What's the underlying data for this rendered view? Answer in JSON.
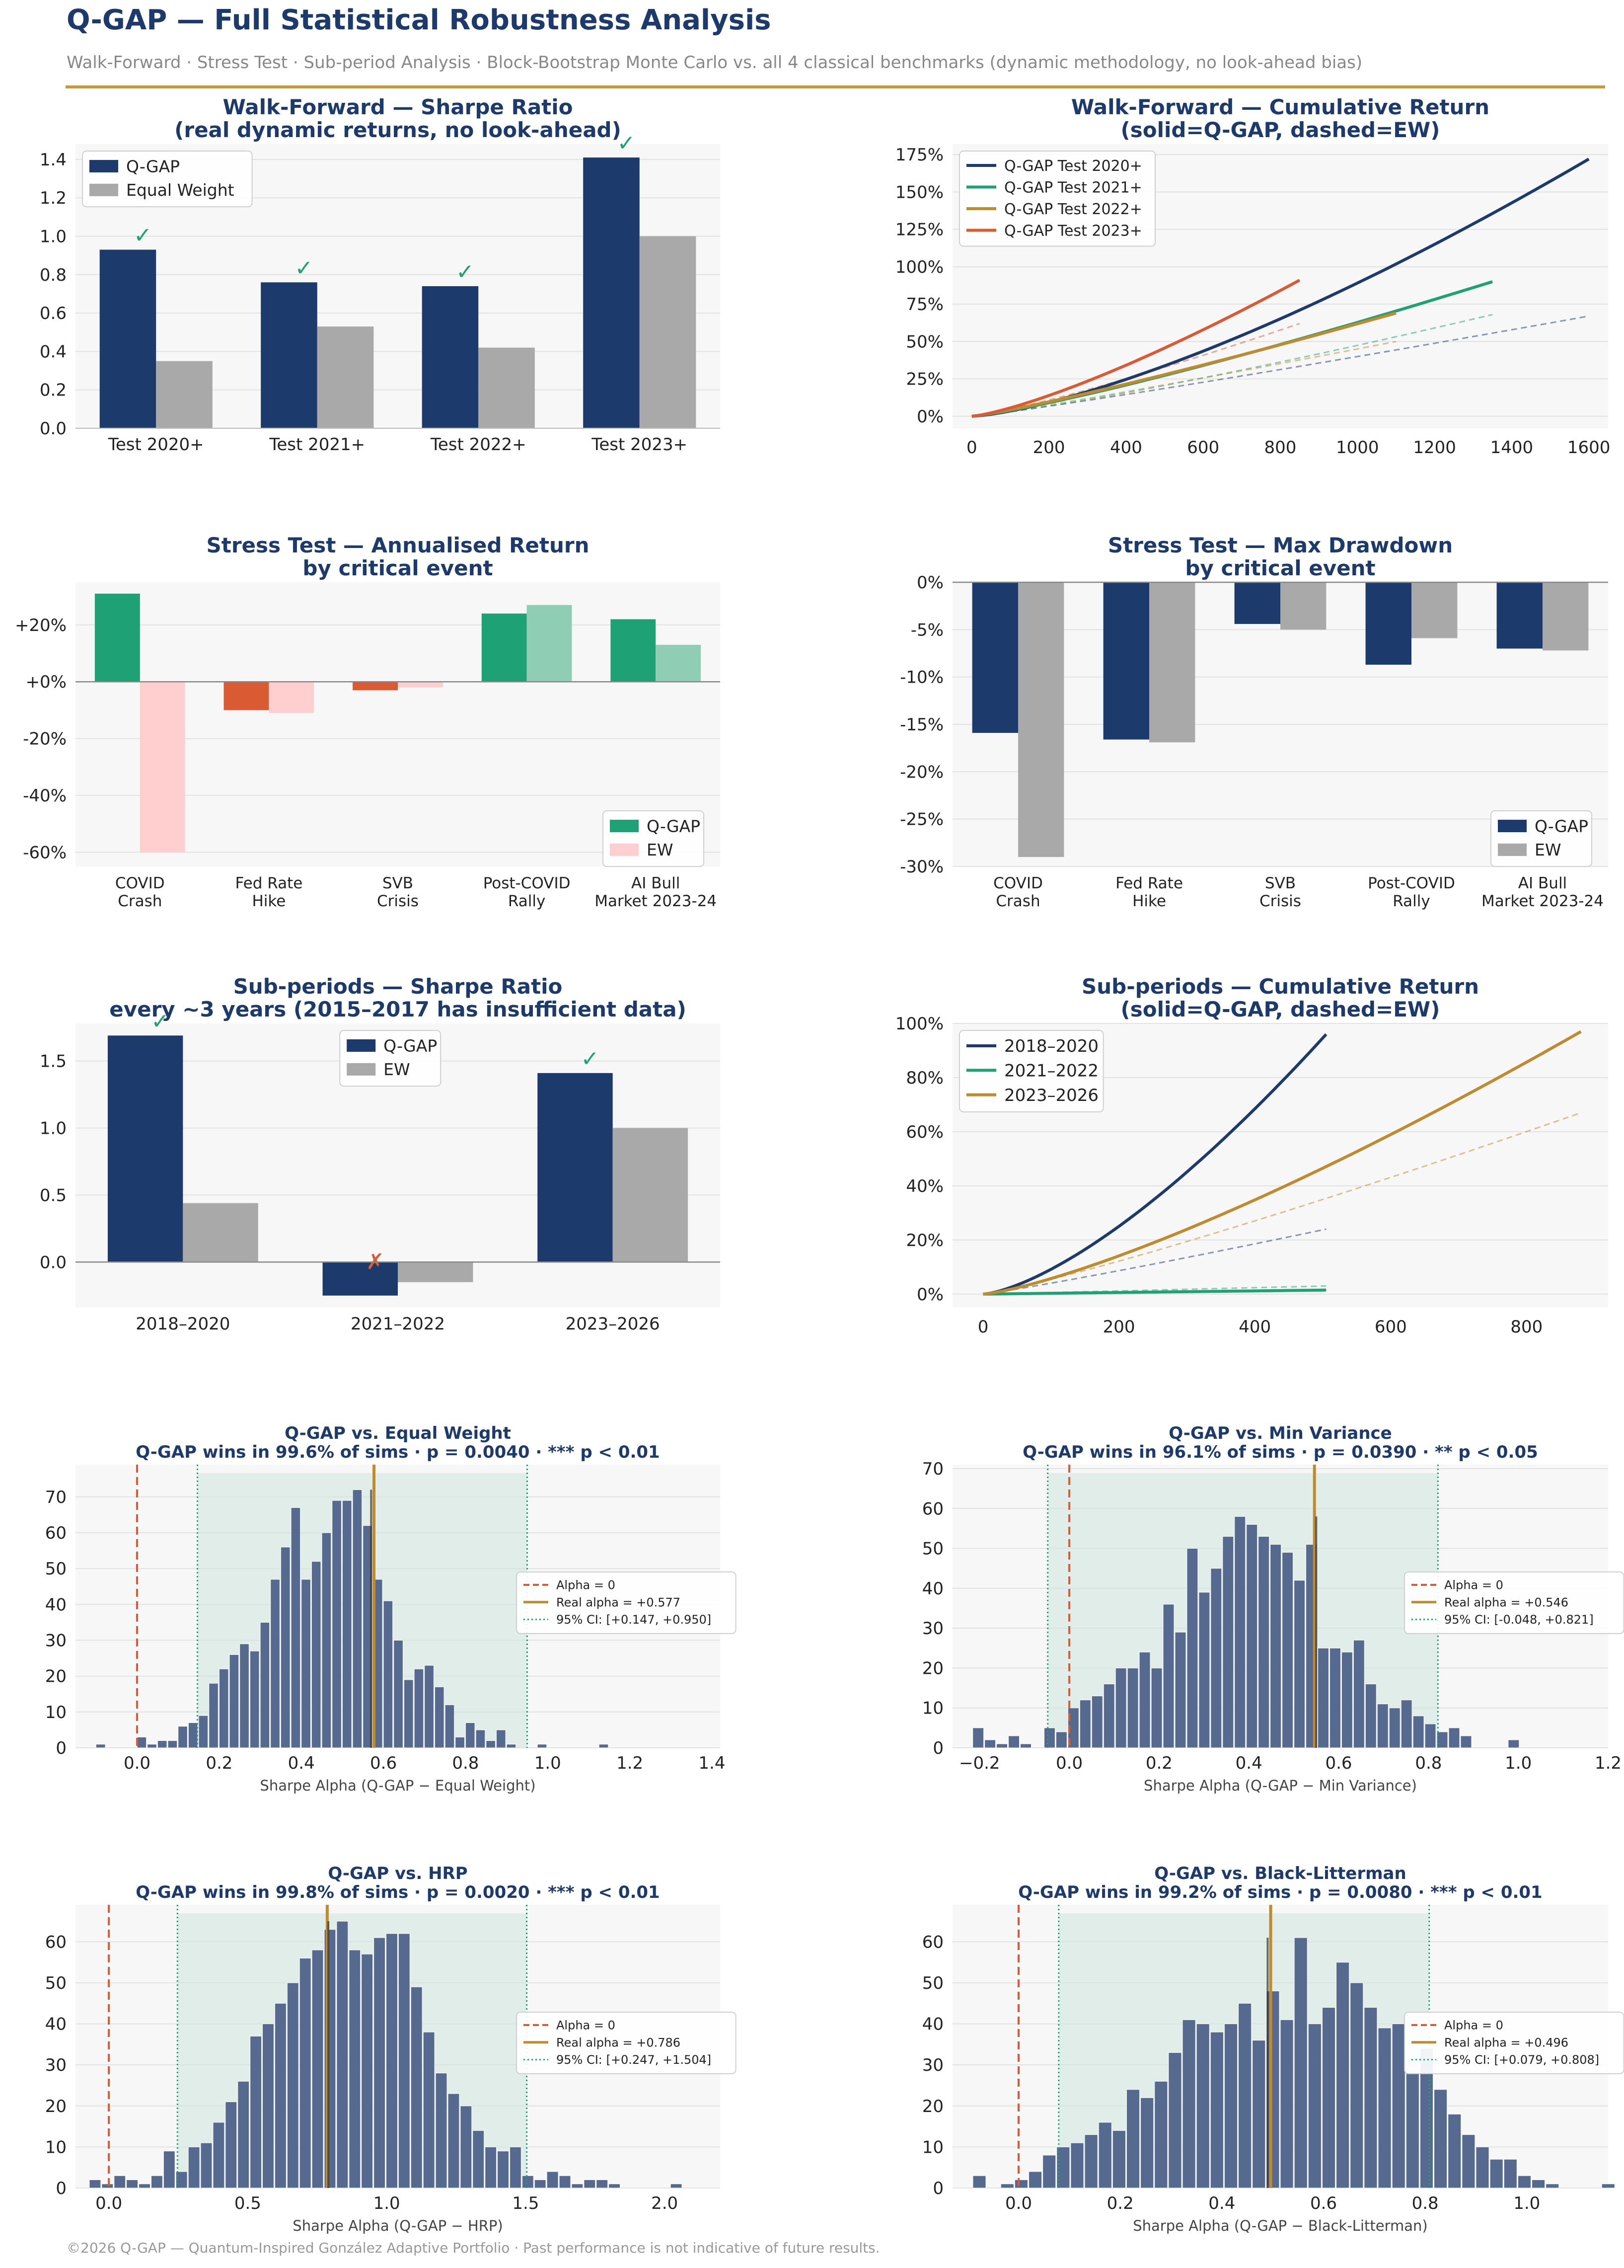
{
  "header": {
    "title": "Q-GAP — Full Statistical Robustness Analysis",
    "subtitle": "Walk-Forward  ·  Stress Test  ·  Sub-period Analysis  ·  Block-Bootstrap Monte Carlo vs. all 4 classical benchmarks (dynamic methodology, no look-ahead bias)"
  },
  "footer": "©2026 Q-GAP — Quantum-Inspired González Adaptive Portfolio  ·  Past performance is not indicative of future results.",
  "colors": {
    "qgap": "#1c3a6b",
    "ew": "#a9a9a9",
    "green": "#1fa176",
    "orange": "#d95a33",
    "gold": "#c08a2e",
    "pink": "#ffcfcf",
    "lightgreen": "#8fcdb5",
    "hist": "#56698f"
  },
  "chart_data": [
    {
      "id": "wf-sharpe",
      "type": "bar",
      "title": "Walk-Forward — Sharpe Ratio",
      "subtitle": "(real dynamic returns, no look-ahead)",
      "categories": [
        "Test 2020+",
        "Test 2021+",
        "Test 2022+",
        "Test 2023+"
      ],
      "series": [
        {
          "name": "Q-GAP",
          "values": [
            0.93,
            0.76,
            0.74,
            1.41
          ]
        },
        {
          "name": "Equal Weight",
          "values": [
            0.35,
            0.53,
            0.42,
            1.0
          ]
        }
      ],
      "markers": [
        "✓",
        "✓",
        "✓",
        "✓"
      ],
      "ylim": [
        0,
        1.48
      ],
      "yticks": [
        0,
        0.2,
        0.4,
        0.6,
        0.8,
        1.0,
        1.2,
        1.4
      ],
      "ytick_labels": [
        "0.0",
        "0.2",
        "0.4",
        "0.6",
        "0.8",
        "1.0",
        "1.2",
        "1.4"
      ],
      "legend": "top-left"
    },
    {
      "id": "wf-cum",
      "type": "line",
      "title": "Walk-Forward — Cumulative Return",
      "subtitle": "(solid=Q-GAP, dashed=EW)",
      "xlim": [
        -50,
        1650
      ],
      "xticks": [
        0,
        200,
        400,
        600,
        800,
        1000,
        1200,
        1400,
        1600
      ],
      "ylim": [
        -0.08,
        1.82
      ],
      "yticks": [
        0,
        0.25,
        0.5,
        0.75,
        1.0,
        1.25,
        1.5,
        1.75
      ],
      "ytick_labels": [
        "0%",
        "25%",
        "50%",
        "75%",
        "100%",
        "125%",
        "150%",
        "175%"
      ],
      "series": [
        {
          "name": "Q-GAP Test 2020+",
          "color": "#1c3a6b",
          "solid": {
            "end_x": 1600,
            "end_y": 1.72,
            "curv": 1.4
          },
          "dashed": {
            "end_x": 1600,
            "end_y": 0.67,
            "curv": 1.1
          }
        },
        {
          "name": "Q-GAP Test 2021+",
          "color": "#1fa176",
          "solid": {
            "end_x": 1350,
            "end_y": 0.9,
            "curv": 1.2
          },
          "dashed": {
            "end_x": 1350,
            "end_y": 0.68,
            "curv": 1.2
          }
        },
        {
          "name": "Q-GAP Test 2022+",
          "color": "#c08a2e",
          "solid": {
            "end_x": 1100,
            "end_y": 0.69,
            "curv": 1.15
          },
          "dashed": {
            "end_x": 1100,
            "end_y": 0.5,
            "curv": 1.1
          }
        },
        {
          "name": "Q-GAP Test 2023+",
          "color": "#d95a33",
          "solid": {
            "end_x": 850,
            "end_y": 0.91,
            "curv": 1.3
          },
          "dashed": {
            "end_x": 850,
            "end_y": 0.62,
            "curv": 1.2
          }
        }
      ],
      "legend": "top-left"
    },
    {
      "id": "st-ret",
      "type": "bar",
      "title": "Stress Test — Annualised Return",
      "subtitle": "by critical event",
      "categories": [
        [
          "COVID",
          "Crash"
        ],
        [
          "Fed Rate",
          "Hike"
        ],
        [
          "SVB",
          "Crisis"
        ],
        [
          "Post-COVID",
          "Rally"
        ],
        [
          "AI Bull",
          "Market 2023-24"
        ]
      ],
      "series": [
        {
          "name": "Q-GAP",
          "values": [
            31,
            -10,
            -3,
            24,
            22
          ]
        },
        {
          "name": "EW",
          "values": [
            -60,
            -11,
            -2,
            27,
            13
          ]
        }
      ],
      "ylim": [
        -65,
        35
      ],
      "yticks": [
        -60,
        -40,
        -20,
        0,
        20
      ],
      "ytick_labels": [
        "-60%",
        "-40%",
        "-20%",
        "+0%",
        "+20%"
      ],
      "legend": "bottom-right"
    },
    {
      "id": "st-dd",
      "type": "bar",
      "title": "Stress Test — Max Drawdown",
      "subtitle": "by critical event",
      "categories": [
        [
          "COVID",
          "Crash"
        ],
        [
          "Fed Rate",
          "Hike"
        ],
        [
          "SVB",
          "Crisis"
        ],
        [
          "Post-COVID",
          "Rally"
        ],
        [
          "AI Bull",
          "Market 2023-24"
        ]
      ],
      "series": [
        {
          "name": "Q-GAP",
          "values": [
            -15.9,
            -16.6,
            -4.4,
            -8.7,
            -7.0
          ]
        },
        {
          "name": "EW",
          "values": [
            -29.0,
            -16.9,
            -5.0,
            -5.9,
            -7.2
          ]
        }
      ],
      "ylim": [
        -30,
        0
      ],
      "yticks": [
        -30,
        -25,
        -20,
        -15,
        -10,
        -5,
        0
      ],
      "ytick_labels": [
        "-30%",
        "-25%",
        "-20%",
        "-15%",
        "-10%",
        "-5%",
        "0%"
      ],
      "legend": "bottom-right"
    },
    {
      "id": "sp-sharpe",
      "type": "bar",
      "title": "Sub-periods — Sharpe Ratio",
      "subtitle": "every ~3 years (2015–2017 has insufficient data)",
      "categories": [
        "2018–2020",
        "2021–2022",
        "2023–2026"
      ],
      "series": [
        {
          "name": "Q-GAP",
          "values": [
            1.69,
            -0.25,
            1.41
          ]
        },
        {
          "name": "EW",
          "values": [
            0.44,
            -0.15,
            1.0
          ]
        }
      ],
      "markers": [
        "✓",
        "✗",
        "✓"
      ],
      "ylim": [
        -0.34,
        1.78
      ],
      "yticks": [
        0,
        0.5,
        1.0,
        1.5
      ],
      "ytick_labels": [
        "0.0",
        "0.5",
        "1.0",
        "1.5"
      ],
      "legend": "top-center"
    },
    {
      "id": "sp-cum",
      "type": "line",
      "title": "Sub-periods — Cumulative Return",
      "subtitle": "(solid=Q-GAP, dashed=EW)",
      "xlim": [
        -45,
        920
      ],
      "xticks": [
        0,
        200,
        400,
        600,
        800
      ],
      "ylim": [
        -0.05,
        1.0
      ],
      "yticks": [
        0,
        0.2,
        0.4,
        0.6,
        0.8,
        1.0
      ],
      "ytick_labels": [
        "0%",
        "20%",
        "40%",
        "60%",
        "80%",
        "100%"
      ],
      "series": [
        {
          "name": "2018–2020",
          "color": "#1c3a6b",
          "solid": {
            "end_x": 505,
            "end_y": 0.96,
            "curv": 1.45
          },
          "dashed": {
            "end_x": 505,
            "end_y": 0.24,
            "curv": 1.1
          }
        },
        {
          "name": "2021–2022",
          "color": "#1fa176",
          "solid": {
            "end_x": 505,
            "end_y": 0.015,
            "curv": 1.0
          },
          "dashed": {
            "end_x": 505,
            "end_y": 0.03,
            "curv": 1.0
          }
        },
        {
          "name": "2023–2026",
          "color": "#c08a2e",
          "solid": {
            "end_x": 880,
            "end_y": 0.97,
            "curv": 1.3
          },
          "dashed": {
            "end_x": 880,
            "end_y": 0.67,
            "curv": 1.15
          }
        }
      ],
      "legend": "top-left"
    },
    {
      "id": "mc-ew",
      "type": "histogram",
      "title": "Q-GAP vs. Equal Weight",
      "subtitle": "Q-GAP wins in 99.6% of sims  ·  p = 0.0040  ·  *** p < 0.01",
      "xlabel": "Sharpe Alpha (Q-GAP − Equal Weight)",
      "bin_start": -0.1,
      "bin_width": 0.025,
      "counts": [
        1,
        0,
        0,
        0,
        3,
        1,
        2,
        2,
        6,
        7,
        9,
        18,
        22,
        26,
        29,
        27,
        35,
        47,
        56,
        67,
        47,
        52,
        60,
        69,
        69,
        72,
        62,
        47,
        41,
        30,
        19,
        22,
        23,
        17,
        12,
        3,
        7,
        5,
        2,
        5,
        1,
        0,
        0,
        1,
        0,
        0,
        0,
        0,
        0,
        1
      ],
      "xlim": [
        -0.15,
        1.42
      ],
      "xticks": [
        0.0,
        0.2,
        0.4,
        0.6,
        0.8,
        1.0,
        1.2,
        1.4
      ],
      "xtick_labels": [
        "0.0",
        "0.2",
        "0.4",
        "0.6",
        "0.8",
        "1.0",
        "1.2",
        "1.4"
      ],
      "ylim": [
        0,
        79
      ],
      "yticks": [
        0,
        10,
        20,
        30,
        40,
        50,
        60,
        70
      ],
      "alpha0": 0,
      "real_alpha": 0.577,
      "ci": [
        0.147,
        0.95
      ],
      "mean": 0.57,
      "legend": [
        "Alpha = 0",
        "Real alpha = +0.577",
        "95% CI: [+0.147, +0.950]"
      ]
    },
    {
      "id": "mc-mv",
      "type": "histogram",
      "title": "Q-GAP vs. Min Variance",
      "subtitle": "Q-GAP wins in 96.1% of sims  ·  p = 0.0390  ·  ** p < 0.05",
      "xlabel": "Sharpe Alpha (Q-GAP − Min Variance)",
      "bin_start": -0.215,
      "bin_width": 0.0265,
      "counts": [
        5,
        2,
        1,
        3,
        1,
        0,
        5,
        4,
        10,
        12,
        13,
        16,
        20,
        20,
        24,
        20,
        36,
        29,
        50,
        39,
        45,
        53,
        58,
        56,
        53,
        51,
        49,
        42,
        51,
        25,
        25,
        24,
        27,
        16,
        11,
        10,
        12,
        8,
        6,
        4,
        5,
        3,
        0,
        0,
        0,
        2
      ],
      "xlim": [
        -0.26,
        1.2
      ],
      "xticks": [
        -0.2,
        0.0,
        0.2,
        0.4,
        0.6,
        0.8,
        1.0,
        1.2
      ],
      "xtick_labels": [
        "−0.2",
        "0.0",
        "0.2",
        "0.4",
        "0.6",
        "0.8",
        "1.0",
        "1.2"
      ],
      "ylim": [
        0,
        71
      ],
      "yticks": [
        0,
        10,
        20,
        30,
        40,
        50,
        60,
        70
      ],
      "alpha0": 0,
      "real_alpha": 0.546,
      "ci": [
        -0.048,
        0.821
      ],
      "mean": 0.55,
      "legend": [
        "Alpha = 0",
        "Real alpha = +0.546",
        "95% CI: [-0.048, +0.821]"
      ]
    },
    {
      "id": "mc-hrp",
      "type": "histogram",
      "title": "Q-GAP vs. HRP",
      "subtitle": "Q-GAP wins in 99.8% of sims  ·  p = 0.0020  ·  *** p < 0.01",
      "xlabel": "Sharpe Alpha (Q-GAP − HRP)",
      "bin_start": -0.07,
      "bin_width": 0.0445,
      "counts": [
        2,
        1,
        3,
        2,
        1,
        3,
        9,
        4,
        10,
        11,
        16,
        21,
        26,
        37,
        40,
        45,
        50,
        56,
        58,
        63,
        65,
        58,
        57,
        61,
        62,
        62,
        49,
        38,
        28,
        23,
        20,
        14,
        10,
        9,
        10,
        3,
        2,
        4,
        3,
        1,
        2,
        2,
        1,
        0,
        0,
        0,
        0,
        1
      ],
      "xlim": [
        -0.12,
        2.2
      ],
      "xticks": [
        0.0,
        0.5,
        1.0,
        1.5,
        2.0
      ],
      "xtick_labels": [
        "0.0",
        "0.5",
        "1.0",
        "1.5",
        "2.0"
      ],
      "ylim": [
        0,
        69
      ],
      "yticks": [
        0,
        10,
        20,
        30,
        40,
        50,
        60
      ],
      "alpha0": 0,
      "real_alpha": 0.786,
      "ci": [
        0.247,
        1.504
      ],
      "mean": 0.79,
      "legend": [
        "Alpha = 0",
        "Real alpha = +0.786",
        "95% CI: [+0.247, +1.504]"
      ]
    },
    {
      "id": "mc-bl",
      "type": "histogram",
      "title": "Q-GAP vs. Black-Litterman",
      "subtitle": "Q-GAP wins in 99.2% of sims  ·  p = 0.0080  ·  *** p < 0.01",
      "xlabel": "Sharpe Alpha (Q-GAP − Black-Litterman)",
      "bin_start": -0.09,
      "bin_width": 0.0275,
      "counts": [
        3,
        0,
        1,
        2,
        4,
        8,
        10,
        11,
        13,
        16,
        14,
        24,
        22,
        26,
        33,
        41,
        40,
        38,
        40,
        45,
        36,
        48,
        41,
        61,
        40,
        44,
        55,
        50,
        44,
        39,
        40,
        28,
        34,
        24,
        18,
        13,
        10,
        7,
        7,
        3,
        2,
        1,
        0,
        0,
        0,
        1,
        0,
        2
      ],
      "xlim": [
        -0.13,
        1.16
      ],
      "xticks": [
        0.0,
        0.2,
        0.4,
        0.6,
        0.8,
        1.0
      ],
      "xtick_labels": [
        "0.0",
        "0.2",
        "0.4",
        "0.6",
        "0.8",
        "1.0"
      ],
      "ylim": [
        0,
        69
      ],
      "yticks": [
        0,
        10,
        20,
        30,
        40,
        50,
        60
      ],
      "alpha0": 0,
      "real_alpha": 0.496,
      "ci": [
        0.079,
        0.808
      ],
      "mean": 0.49,
      "legend": [
        "Alpha = 0",
        "Real alpha = +0.496",
        "95% CI: [+0.079, +0.808]"
      ]
    }
  ]
}
